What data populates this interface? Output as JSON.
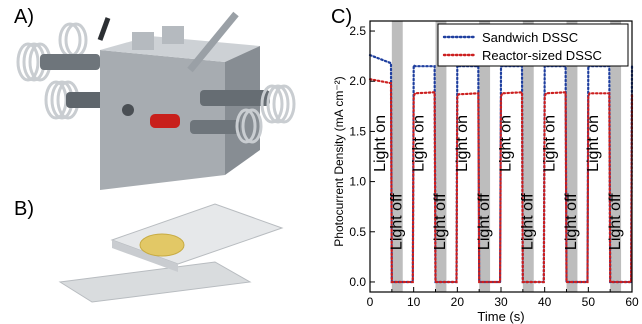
{
  "panels": {
    "a_label": "A)",
    "b_label": "B)",
    "c_label": "C)"
  },
  "colors": {
    "sandwich": "#1f3f9f",
    "reactor": "#cc1f1f",
    "shade": "#bdbdbd",
    "metal": "#9aa0a6",
    "coil": "#cfd3d6",
    "red_knob": "#c8201c",
    "glass": "#d9dcde",
    "dye_spot": "#e2c866"
  },
  "chart_data": {
    "type": "line",
    "xlabel": "Time (s)",
    "ylabel": "Photocurrent Density (mA cm⁻²)",
    "xlim": [
      0,
      60
    ],
    "ylim": [
      -0.1,
      2.6
    ],
    "xticks": [
      0,
      10,
      20,
      30,
      40,
      50,
      60
    ],
    "yticks": [
      0.0,
      0.5,
      1.0,
      1.5,
      2.0,
      2.5
    ],
    "legend_position": "top-right",
    "light_off_intervals": [
      [
        5,
        7.5
      ],
      [
        15,
        17.5
      ],
      [
        25,
        27.5
      ],
      [
        35,
        37.5
      ],
      [
        45,
        47.5
      ],
      [
        55,
        57.5
      ]
    ],
    "annotations": [
      {
        "text": "Light on",
        "x": 2.5,
        "y": 1.38
      },
      {
        "text": "Light off",
        "x": 6.25,
        "y": 0.6
      },
      {
        "text": "Light on",
        "x": 11.25,
        "y": 1.38
      },
      {
        "text": "Light off",
        "x": 16.25,
        "y": 0.6
      },
      {
        "text": "Light on",
        "x": 21.25,
        "y": 1.38
      },
      {
        "text": "Light off",
        "x": 26.25,
        "y": 0.6
      },
      {
        "text": "Light on",
        "x": 31.25,
        "y": 1.38
      },
      {
        "text": "Light off",
        "x": 36.25,
        "y": 0.6
      },
      {
        "text": "Light on",
        "x": 41.25,
        "y": 1.38
      },
      {
        "text": "Light off",
        "x": 46.25,
        "y": 0.6
      },
      {
        "text": "Light on",
        "x": 51.25,
        "y": 1.38
      },
      {
        "text": "Light off",
        "x": 56.25,
        "y": 0.6
      }
    ],
    "series": [
      {
        "name": "Sandwich DSSC",
        "x": [
          0,
          4.8,
          5,
          5.2,
          9.8,
          10,
          10.3,
          14.8,
          15,
          15.2,
          19.8,
          20,
          20.3,
          24.8,
          25,
          25.2,
          29.8,
          30,
          30.3,
          34.8,
          35,
          35.2,
          39.8,
          40,
          40.3,
          44.8,
          45,
          45.2,
          49.8,
          50,
          50.3,
          54.8,
          55,
          55.2,
          59.8,
          60
        ],
        "y": [
          2.26,
          2.18,
          0.0,
          0.0,
          0.0,
          2.16,
          2.15,
          2.15,
          0.0,
          0.0,
          0.0,
          2.16,
          2.15,
          2.15,
          0.0,
          0.0,
          0.0,
          2.15,
          2.15,
          2.15,
          0.0,
          0.0,
          0.0,
          2.15,
          2.15,
          2.15,
          0.0,
          0.0,
          0.0,
          2.16,
          2.15,
          2.15,
          0.0,
          0.0,
          0.0,
          2.15
        ]
      },
      {
        "name": "Reactor-sized DSSC",
        "x": [
          0,
          4.8,
          5,
          5.2,
          9.8,
          10,
          10.3,
          14.8,
          15,
          15.2,
          19.8,
          20,
          20.3,
          24.8,
          25,
          25.2,
          29.8,
          30,
          30.3,
          34.8,
          35,
          35.2,
          39.8,
          40,
          40.3,
          44.8,
          45,
          45.2,
          49.8,
          50,
          50.3,
          54.8,
          55,
          55.2,
          59.8,
          60
        ],
        "y": [
          2.02,
          1.98,
          0.0,
          0.0,
          0.0,
          1.85,
          1.88,
          1.89,
          0.0,
          0.0,
          0.0,
          1.85,
          1.87,
          1.88,
          0.0,
          0.0,
          0.0,
          1.85,
          1.88,
          1.89,
          0.0,
          0.0,
          0.0,
          1.85,
          1.88,
          1.89,
          0.0,
          0.0,
          0.0,
          1.85,
          1.88,
          1.88,
          0.0,
          0.0,
          0.0,
          1.87
        ]
      }
    ]
  }
}
